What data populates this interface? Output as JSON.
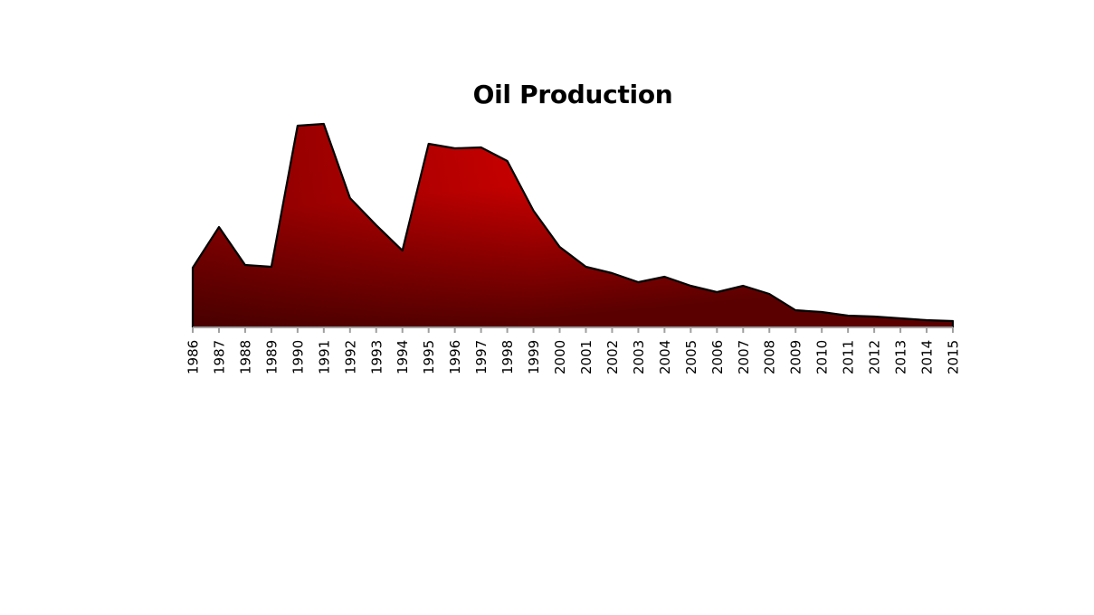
{
  "chart_data": {
    "type": "area",
    "title": "Oil Production",
    "xlabel": "",
    "ylabel": "",
    "y_axis_visible": false,
    "grid": false,
    "legend": null,
    "categories": [
      "1986",
      "1987",
      "1988",
      "1989",
      "1990",
      "1991",
      "1992",
      "1993",
      "1994",
      "1995",
      "1996",
      "1997",
      "1998",
      "1999",
      "2000",
      "2001",
      "2002",
      "2003",
      "2004",
      "2005",
      "2006",
      "2007",
      "2008",
      "2009",
      "2010",
      "2011",
      "2012",
      "2013",
      "2014",
      "2015"
    ],
    "series": [
      {
        "name": "Oil Production",
        "values": [
          66,
          111,
          69,
          67,
          223,
          225,
          143,
          113,
          85,
          203,
          198,
          199,
          184,
          129,
          89,
          67,
          60,
          50,
          56,
          46,
          39,
          46,
          37,
          19,
          17,
          13,
          12,
          10,
          8,
          7
        ]
      }
    ],
    "value_note": "relative heights (no y-axis scale shown)",
    "colors": {
      "fill_top": "#cc0000",
      "fill_bottom": "#5a0000",
      "outline": "#000000",
      "axis": "#a0a0a0"
    }
  }
}
